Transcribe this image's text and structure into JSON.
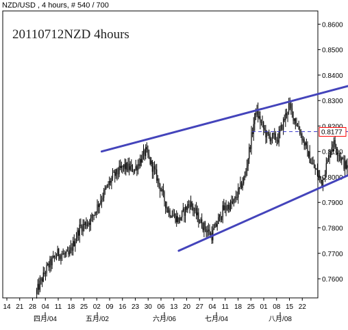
{
  "header": {
    "text": "NZD/USD , 4 hours, # 540 / 700"
  },
  "chart_data": {
    "type": "candlestick",
    "title": "20110712NZD 4hours",
    "symbol": "NZD/USD",
    "timeframe": "4 hours",
    "ylim": [
      0.7525,
      0.8652
    ],
    "yticks": [
      "0.8600",
      "0.8500",
      "0.8400",
      "0.8300",
      "0.8200",
      "0.8100",
      "0.8000",
      "0.7900",
      "0.7800",
      "0.7700",
      "0.7600"
    ],
    "current_price": "0.8177",
    "xticks": [
      "14",
      "21",
      "28",
      "04",
      "11",
      "18",
      "25",
      "02",
      "09",
      "16",
      "23",
      "30",
      "06",
      "13",
      "20",
      "27",
      "04",
      "11",
      "18",
      "25",
      "01",
      "08",
      "15",
      "22"
    ],
    "month_labels": [
      "四月/04",
      "五月/02",
      "六月/06",
      "七月/04",
      "八月/08"
    ],
    "price_path": [
      [
        "04-04",
        0.754
      ],
      [
        "04-07",
        0.764
      ],
      [
        "04-10",
        0.77
      ],
      [
        "04-13",
        0.769
      ],
      [
        "04-16",
        0.78
      ],
      [
        "04-19",
        0.783
      ],
      [
        "04-22",
        0.792
      ],
      [
        "04-25",
        0.8
      ],
      [
        "04-28",
        0.804
      ],
      [
        "05-01",
        0.803
      ],
      [
        "05-04",
        0.81
      ],
      [
        "05-07",
        0.8
      ],
      [
        "05-10",
        0.787
      ],
      [
        "05-13",
        0.783
      ],
      [
        "05-16",
        0.79
      ],
      [
        "05-19",
        0.782
      ],
      [
        "05-22",
        0.777
      ],
      [
        "05-25",
        0.787
      ],
      [
        "05-28",
        0.79
      ],
      [
        "05-31",
        0.8
      ],
      [
        "06-03",
        0.826
      ],
      [
        "06-06",
        0.816
      ],
      [
        "06-09",
        0.815
      ],
      [
        "06-12",
        0.828
      ],
      [
        "06-15",
        0.818
      ],
      [
        "06-18",
        0.806
      ],
      [
        "06-21",
        0.798
      ],
      [
        "06-24",
        0.814
      ],
      [
        "06-27",
        0.805
      ],
      [
        "06-30",
        0.8
      ],
      [
        "07-03",
        0.83
      ],
      [
        "07-06",
        0.827
      ],
      [
        "07-09",
        0.83
      ],
      [
        "07-11",
        0.838
      ],
      [
        "07-12",
        0.827
      ],
      [
        "07-13",
        0.812
      ],
      [
        "07-13",
        0.8177
      ]
    ],
    "trendlines": [
      {
        "name": "upper channel",
        "from": [
          "04-22",
          0.81
        ],
        "to": [
          "07-25",
          0.846
        ]
      },
      {
        "name": "lower channel",
        "from": [
          "05-13",
          0.771
        ],
        "to": [
          "08-05",
          0.825
        ]
      }
    ],
    "hline": {
      "from": "06-02",
      "to": "07-01",
      "value": 0.8178
    },
    "colors": {
      "candles": "#000000",
      "trendlines": "#4444bb",
      "hline": "#3333cc",
      "price_box": "#ff0000"
    }
  }
}
